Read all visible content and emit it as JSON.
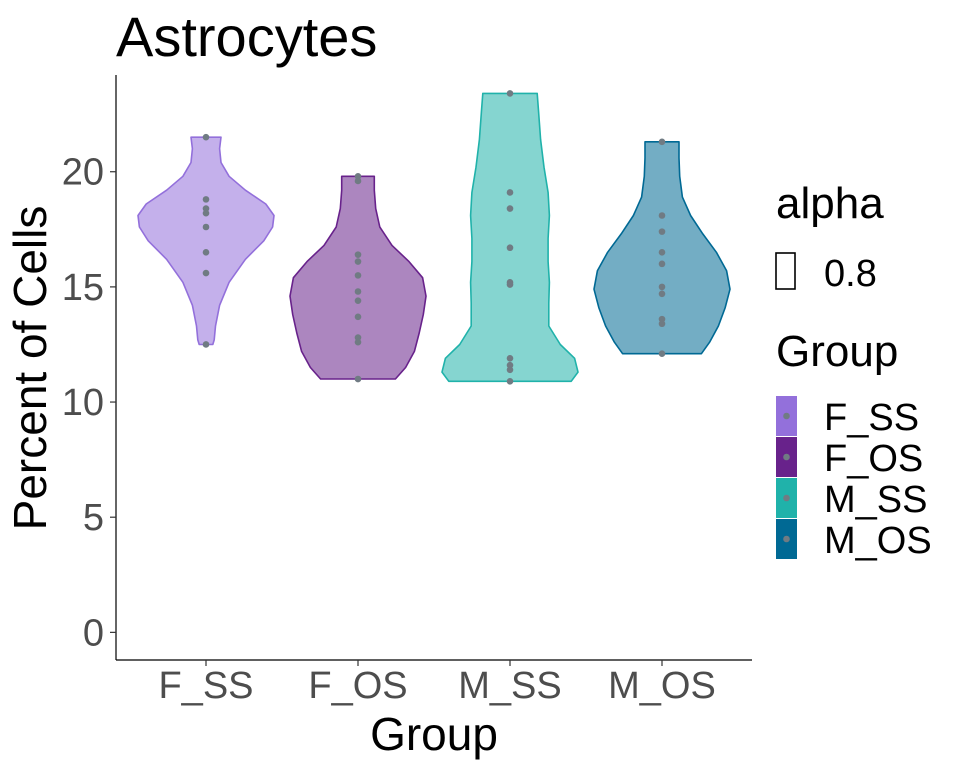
{
  "chart_data": {
    "type": "violin",
    "title": "Astrocytes",
    "xlabel": "Group",
    "ylabel": "Percent of Cells",
    "ylim": [
      -1.2,
      24.2
    ],
    "yticks": [
      0,
      5,
      10,
      15,
      20
    ],
    "grid": false,
    "legend_position": "right",
    "categories": [
      "F_SS",
      "F_OS",
      "M_SS",
      "M_OS"
    ],
    "colors": {
      "F_SS": "#9370DB",
      "F_OS": "#68228B",
      "M_SS": "#20B2AA",
      "M_OS": "#006994"
    },
    "series": [
      {
        "name": "F_SS",
        "points": [
          21.5,
          18.8,
          18.4,
          18.2,
          17.6,
          16.5,
          15.6,
          12.5
        ],
        "density": [
          [
            12.5,
            0.1
          ],
          [
            12.7,
            0.12
          ],
          [
            13.3,
            0.14
          ],
          [
            14.2,
            0.2
          ],
          [
            15.2,
            0.34
          ],
          [
            16.2,
            0.58
          ],
          [
            17.0,
            0.85
          ],
          [
            17.6,
            0.98
          ],
          [
            18.1,
            1.0
          ],
          [
            18.6,
            0.88
          ],
          [
            19.2,
            0.58
          ],
          [
            19.8,
            0.34
          ],
          [
            20.4,
            0.22
          ],
          [
            21.0,
            0.2
          ],
          [
            21.5,
            0.22
          ]
        ]
      },
      {
        "name": "F_OS",
        "points": [
          19.8,
          19.6,
          16.4,
          16.1,
          15.5,
          14.8,
          14.4,
          13.7,
          12.8,
          12.6,
          11.0
        ],
        "density": [
          [
            11.0,
            0.55
          ],
          [
            11.5,
            0.7
          ],
          [
            12.2,
            0.83
          ],
          [
            13.0,
            0.9
          ],
          [
            13.8,
            0.96
          ],
          [
            14.6,
            1.0
          ],
          [
            15.4,
            0.95
          ],
          [
            16.1,
            0.75
          ],
          [
            16.8,
            0.5
          ],
          [
            17.6,
            0.32
          ],
          [
            18.4,
            0.26
          ],
          [
            19.2,
            0.24
          ],
          [
            19.8,
            0.24
          ]
        ]
      },
      {
        "name": "M_SS",
        "points": [
          23.4,
          19.1,
          18.4,
          16.7,
          15.2,
          15.1,
          11.9,
          11.6,
          11.4,
          10.9
        ],
        "density": [
          [
            10.9,
            0.9
          ],
          [
            11.3,
            1.0
          ],
          [
            11.9,
            0.95
          ],
          [
            12.5,
            0.74
          ],
          [
            13.3,
            0.57
          ],
          [
            14.3,
            0.57
          ],
          [
            15.2,
            0.58
          ],
          [
            16.1,
            0.56
          ],
          [
            17.1,
            0.56
          ],
          [
            18.1,
            0.58
          ],
          [
            19.1,
            0.56
          ],
          [
            20.2,
            0.5
          ],
          [
            21.4,
            0.45
          ],
          [
            22.6,
            0.42
          ],
          [
            23.4,
            0.4
          ]
        ]
      },
      {
        "name": "M_OS",
        "points": [
          21.3,
          18.1,
          17.4,
          16.5,
          16.0,
          15.0,
          14.7,
          13.6,
          13.4,
          12.1
        ],
        "density": [
          [
            12.1,
            0.58
          ],
          [
            12.6,
            0.7
          ],
          [
            13.3,
            0.83
          ],
          [
            14.1,
            0.93
          ],
          [
            14.9,
            1.0
          ],
          [
            15.7,
            0.95
          ],
          [
            16.5,
            0.8
          ],
          [
            17.3,
            0.6
          ],
          [
            18.1,
            0.42
          ],
          [
            18.9,
            0.3
          ],
          [
            19.8,
            0.26
          ],
          [
            20.6,
            0.25
          ],
          [
            21.3,
            0.25
          ]
        ]
      }
    ],
    "legend": {
      "alpha_title": "alpha",
      "alpha_label": "0.8",
      "group_title": "Group",
      "items": [
        "F_SS",
        "F_OS",
        "M_SS",
        "M_OS"
      ]
    }
  }
}
